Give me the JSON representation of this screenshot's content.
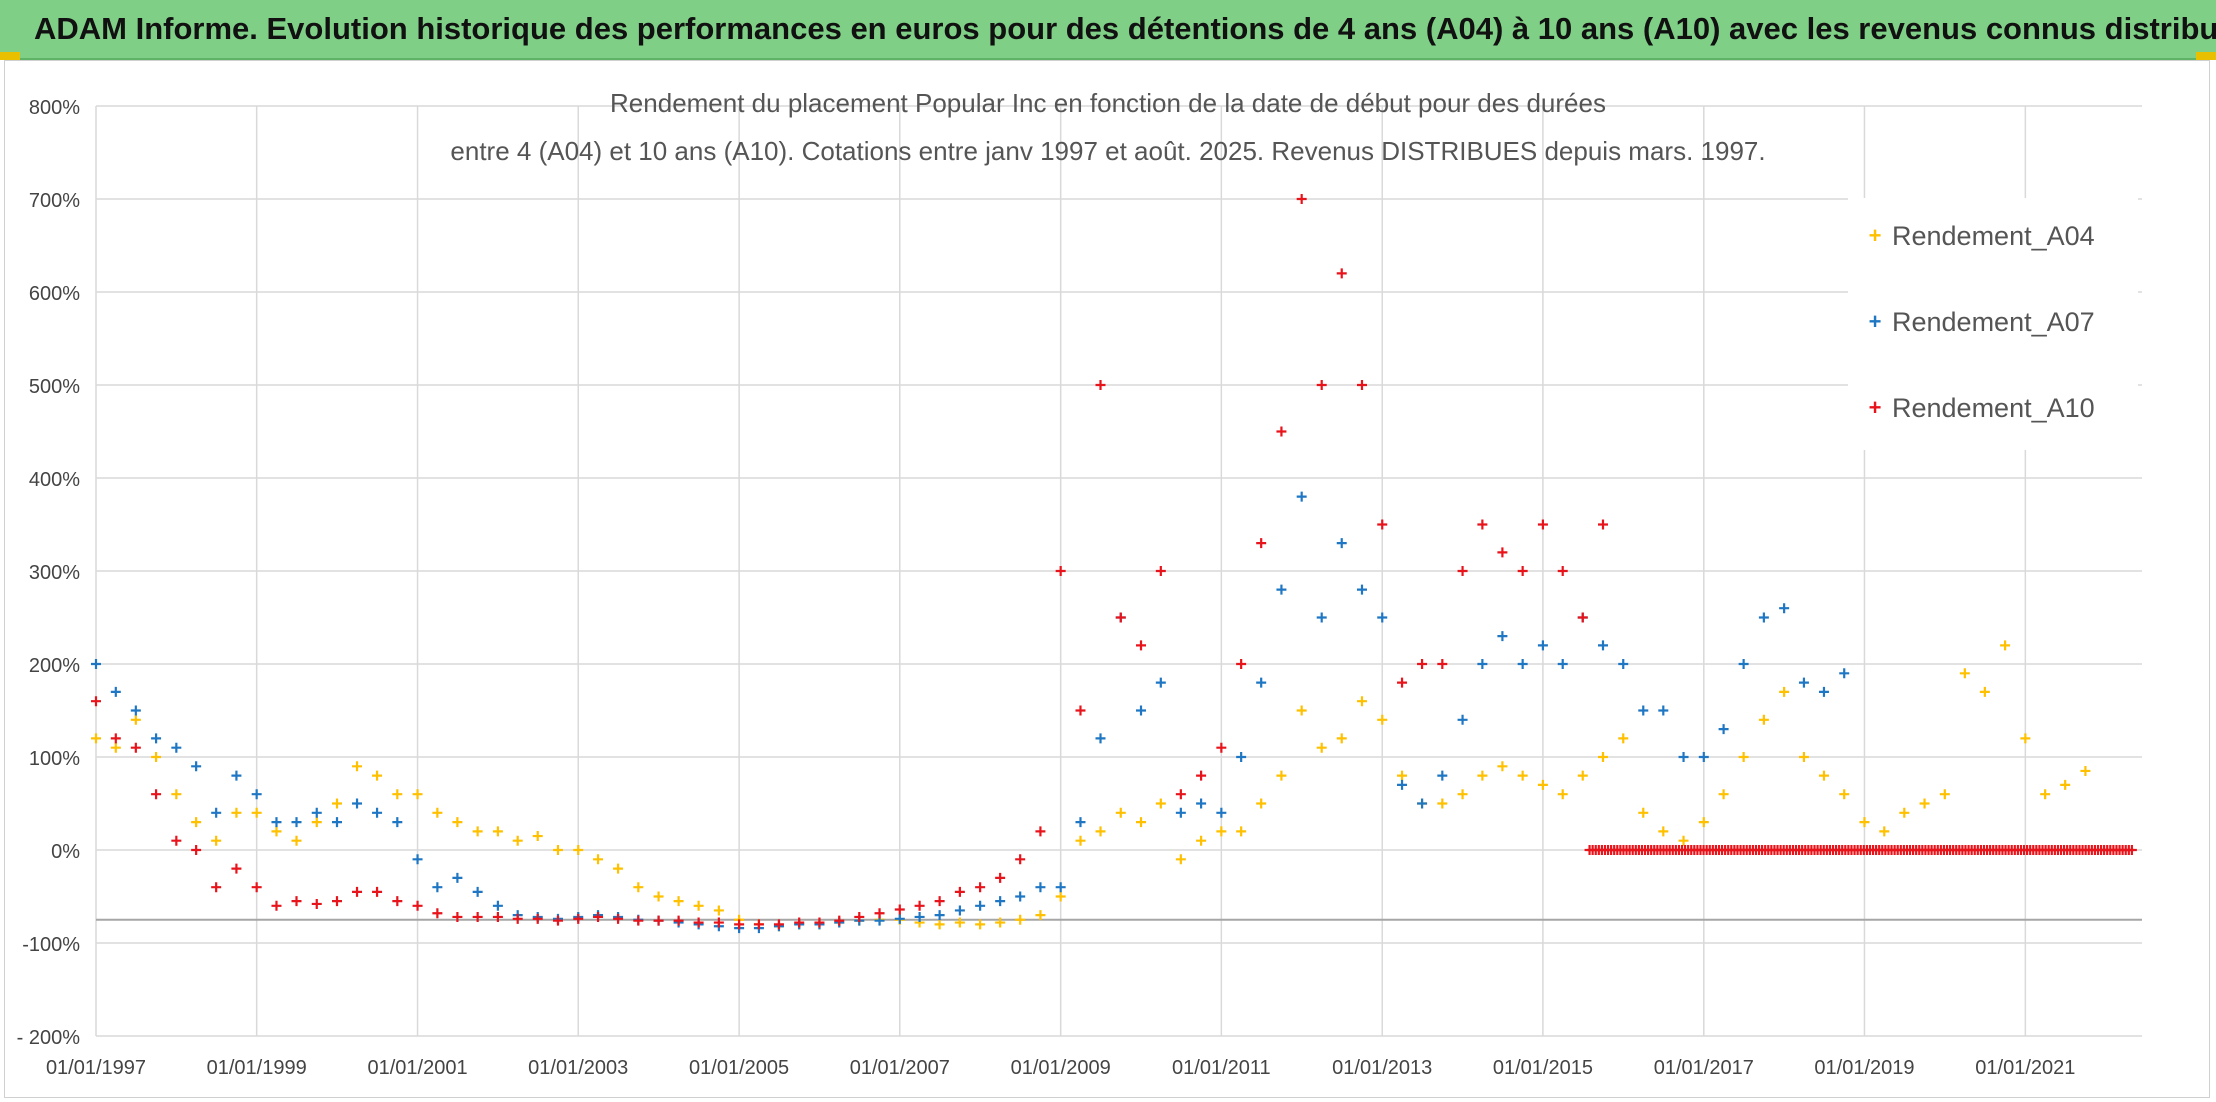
{
  "banner": {
    "title": "ADAM Informe. Evolution historique des performances en euros pour des détentions de 4 ans (A04) à 10 ans (A10) avec les revenus connus distribués"
  },
  "colors": {
    "banner_bg": "#7fcf86",
    "accent": "#e8c000",
    "A04": "#ffc000",
    "A07": "#1f77c4",
    "A10": "#e8141b",
    "grid": "#d9d9d9"
  },
  "chart_data": {
    "type": "scatter",
    "title_line1": "Rendement du placement Popular Inc en fonction de la date de début pour des durées",
    "title_line2": "entre 4 (A04) et 10 ans (A10). Cotations entre janv 1997 et août. 2025. Revenus DISTRIBUES depuis mars. 1997.",
    "marker": "+",
    "xlabel": "",
    "ylabel": "",
    "x_range": [
      "1997-01-01",
      "2022-06-15"
    ],
    "y_range": [
      -200,
      800
    ],
    "y_ticks": [
      -200,
      -100,
      0,
      100,
      200,
      300,
      400,
      500,
      600,
      700,
      800
    ],
    "y_tick_labels": [
      "- 200%",
      "-100%",
      "0%",
      "100%",
      "200%",
      "300%",
      "400%",
      "500%",
      "600%",
      "700%",
      "800%"
    ],
    "x_tick_labels": [
      "01/01/1997",
      "01/01/1999",
      "01/01/2001",
      "01/01/2003",
      "01/01/2005",
      "01/01/2007",
      "01/01/2009",
      "01/01/2011",
      "01/01/2013",
      "01/01/2015",
      "01/01/2017",
      "01/01/2019",
      "01/01/2021"
    ],
    "x_tick_dates": [
      "1997-01-01",
      "1999-01-01",
      "2001-01-01",
      "2003-01-01",
      "2005-01-01",
      "2007-01-01",
      "2009-01-01",
      "2011-01-01",
      "2013-01-01",
      "2015-01-01",
      "2017-01-01",
      "2019-01-01",
      "2021-01-01"
    ],
    "grid": true,
    "legend_position": "top-right",
    "reference_line_y": -75,
    "series": [
      {
        "name": "Rendement_A04",
        "color": "#ffc000",
        "points": [
          [
            "1997-01-01",
            120
          ],
          [
            "1997-04-01",
            110
          ],
          [
            "1997-07-01",
            140
          ],
          [
            "1997-10-01",
            100
          ],
          [
            "1998-01-01",
            60
          ],
          [
            "1998-04-01",
            30
          ],
          [
            "1998-07-01",
            10
          ],
          [
            "1998-10-01",
            40
          ],
          [
            "1999-01-01",
            40
          ],
          [
            "1999-04-01",
            20
          ],
          [
            "1999-07-01",
            10
          ],
          [
            "1999-10-01",
            30
          ],
          [
            "2000-01-01",
            50
          ],
          [
            "2000-04-01",
            90
          ],
          [
            "2000-07-01",
            80
          ],
          [
            "2000-10-01",
            60
          ],
          [
            "2001-01-01",
            60
          ],
          [
            "2001-04-01",
            40
          ],
          [
            "2001-07-01",
            30
          ],
          [
            "2001-10-01",
            20
          ],
          [
            "2002-01-01",
            20
          ],
          [
            "2002-04-01",
            10
          ],
          [
            "2002-07-01",
            15
          ],
          [
            "2002-10-01",
            0
          ],
          [
            "2003-01-01",
            0
          ],
          [
            "2003-04-01",
            -10
          ],
          [
            "2003-07-01",
            -20
          ],
          [
            "2003-10-01",
            -40
          ],
          [
            "2004-01-01",
            -50
          ],
          [
            "2004-04-01",
            -55
          ],
          [
            "2004-07-01",
            -60
          ],
          [
            "2004-10-01",
            -65
          ],
          [
            "2005-01-01",
            -75
          ],
          [
            "2005-04-01",
            -80
          ],
          [
            "2005-07-01",
            -82
          ],
          [
            "2005-10-01",
            -80
          ],
          [
            "2006-01-01",
            -80
          ],
          [
            "2006-04-01",
            -78
          ],
          [
            "2006-07-01",
            -76
          ],
          [
            "2006-10-01",
            -75
          ],
          [
            "2007-01-01",
            -75
          ],
          [
            "2007-04-01",
            -78
          ],
          [
            "2007-07-01",
            -80
          ],
          [
            "2007-10-01",
            -78
          ],
          [
            "2008-01-01",
            -80
          ],
          [
            "2008-04-01",
            -78
          ],
          [
            "2008-07-01",
            -75
          ],
          [
            "2008-10-01",
            -70
          ],
          [
            "2009-01-01",
            -50
          ],
          [
            "2009-04-01",
            10
          ],
          [
            "2009-07-01",
            20
          ],
          [
            "2009-10-01",
            40
          ],
          [
            "2010-01-01",
            30
          ],
          [
            "2010-04-01",
            50
          ],
          [
            "2010-07-01",
            -10
          ],
          [
            "2010-10-01",
            10
          ],
          [
            "2011-01-01",
            20
          ],
          [
            "2011-04-01",
            20
          ],
          [
            "2011-07-01",
            50
          ],
          [
            "2011-10-01",
            80
          ],
          [
            "2012-01-01",
            150
          ],
          [
            "2012-04-01",
            110
          ],
          [
            "2012-07-01",
            120
          ],
          [
            "2012-10-01",
            160
          ],
          [
            "2013-01-01",
            140
          ],
          [
            "2013-04-01",
            80
          ],
          [
            "2013-07-01",
            50
          ],
          [
            "2013-10-01",
            50
          ],
          [
            "2014-01-01",
            60
          ],
          [
            "2014-04-01",
            80
          ],
          [
            "2014-07-01",
            90
          ],
          [
            "2014-10-01",
            80
          ],
          [
            "2015-01-01",
            70
          ],
          [
            "2015-04-01",
            60
          ],
          [
            "2015-07-01",
            80
          ],
          [
            "2015-10-01",
            100
          ],
          [
            "2016-01-01",
            120
          ],
          [
            "2016-04-01",
            40
          ],
          [
            "2016-07-01",
            20
          ],
          [
            "2016-10-01",
            10
          ],
          [
            "2017-01-01",
            30
          ],
          [
            "2017-04-01",
            60
          ],
          [
            "2017-07-01",
            100
          ],
          [
            "2017-10-01",
            140
          ],
          [
            "2018-01-01",
            170
          ],
          [
            "2018-04-01",
            100
          ],
          [
            "2018-07-01",
            80
          ],
          [
            "2018-10-01",
            60
          ],
          [
            "2019-01-01",
            30
          ],
          [
            "2019-04-01",
            20
          ],
          [
            "2019-07-01",
            40
          ],
          [
            "2019-10-01",
            50
          ],
          [
            "2020-01-01",
            60
          ],
          [
            "2020-04-01",
            190
          ],
          [
            "2020-07-01",
            170
          ],
          [
            "2020-10-01",
            220
          ],
          [
            "2021-01-01",
            120
          ],
          [
            "2021-04-01",
            60
          ],
          [
            "2021-07-01",
            70
          ],
          [
            "2021-10-01",
            85
          ]
        ]
      },
      {
        "name": "Rendement_A07",
        "color": "#1f77c4",
        "points": [
          [
            "1997-01-01",
            200
          ],
          [
            "1997-04-01",
            170
          ],
          [
            "1997-07-01",
            150
          ],
          [
            "1997-10-01",
            120
          ],
          [
            "1998-01-01",
            110
          ],
          [
            "1998-04-01",
            90
          ],
          [
            "1998-07-01",
            40
          ],
          [
            "1998-10-01",
            80
          ],
          [
            "1999-01-01",
            60
          ],
          [
            "1999-04-01",
            30
          ],
          [
            "1999-07-01",
            30
          ],
          [
            "1999-10-01",
            40
          ],
          [
            "2000-01-01",
            30
          ],
          [
            "2000-04-01",
            50
          ],
          [
            "2000-07-01",
            40
          ],
          [
            "2000-10-01",
            30
          ],
          [
            "2001-01-01",
            -10
          ],
          [
            "2001-04-01",
            -40
          ],
          [
            "2001-07-01",
            -30
          ],
          [
            "2001-10-01",
            -45
          ],
          [
            "2002-01-01",
            -60
          ],
          [
            "2002-04-01",
            -70
          ],
          [
            "2002-07-01",
            -72
          ],
          [
            "2002-10-01",
            -74
          ],
          [
            "2003-01-01",
            -72
          ],
          [
            "2003-04-01",
            -70
          ],
          [
            "2003-07-01",
            -72
          ],
          [
            "2003-10-01",
            -75
          ],
          [
            "2004-01-01",
            -76
          ],
          [
            "2004-04-01",
            -78
          ],
          [
            "2004-07-01",
            -80
          ],
          [
            "2004-10-01",
            -82
          ],
          [
            "2005-01-01",
            -84
          ],
          [
            "2005-04-01",
            -84
          ],
          [
            "2005-07-01",
            -82
          ],
          [
            "2005-10-01",
            -80
          ],
          [
            "2006-01-01",
            -80
          ],
          [
            "2006-04-01",
            -78
          ],
          [
            "2006-07-01",
            -76
          ],
          [
            "2006-10-01",
            -76
          ],
          [
            "2007-01-01",
            -74
          ],
          [
            "2007-04-01",
            -72
          ],
          [
            "2007-07-01",
            -70
          ],
          [
            "2007-10-01",
            -65
          ],
          [
            "2008-01-01",
            -60
          ],
          [
            "2008-04-01",
            -55
          ],
          [
            "2008-07-01",
            -50
          ],
          [
            "2008-10-01",
            -40
          ],
          [
            "2009-01-01",
            -40
          ],
          [
            "2009-04-01",
            30
          ],
          [
            "2009-07-01",
            120
          ],
          [
            "2009-10-01",
            250
          ],
          [
            "2010-01-01",
            150
          ],
          [
            "2010-04-01",
            180
          ],
          [
            "2010-07-01",
            40
          ],
          [
            "2010-10-01",
            50
          ],
          [
            "2011-01-01",
            40
          ],
          [
            "2011-04-01",
            100
          ],
          [
            "2011-07-01",
            180
          ],
          [
            "2011-10-01",
            280
          ],
          [
            "2012-01-01",
            380
          ],
          [
            "2012-04-01",
            250
          ],
          [
            "2012-07-01",
            330
          ],
          [
            "2012-10-01",
            280
          ],
          [
            "2013-01-01",
            250
          ],
          [
            "2013-04-01",
            70
          ],
          [
            "2013-07-01",
            50
          ],
          [
            "2013-10-01",
            80
          ],
          [
            "2014-01-01",
            140
          ],
          [
            "2014-04-01",
            200
          ],
          [
            "2014-07-01",
            230
          ],
          [
            "2014-10-01",
            200
          ],
          [
            "2015-01-01",
            220
          ],
          [
            "2015-04-01",
            200
          ],
          [
            "2015-07-01",
            250
          ],
          [
            "2015-10-01",
            220
          ],
          [
            "2016-01-01",
            200
          ],
          [
            "2016-04-01",
            150
          ],
          [
            "2016-07-01",
            150
          ],
          [
            "2016-10-01",
            100
          ],
          [
            "2017-01-01",
            100
          ],
          [
            "2017-04-01",
            130
          ],
          [
            "2017-07-01",
            200
          ],
          [
            "2017-10-01",
            250
          ],
          [
            "2018-01-01",
            260
          ],
          [
            "2018-04-01",
            180
          ],
          [
            "2018-07-01",
            170
          ],
          [
            "2018-10-01",
            190
          ]
        ]
      },
      {
        "name": "Rendement_A10",
        "color": "#e8141b",
        "points": [
          [
            "1997-01-01",
            160
          ],
          [
            "1997-04-01",
            120
          ],
          [
            "1997-07-01",
            110
          ],
          [
            "1997-10-01",
            60
          ],
          [
            "1998-01-01",
            10
          ],
          [
            "1998-04-01",
            0
          ],
          [
            "1998-07-01",
            -40
          ],
          [
            "1998-10-01",
            -20
          ],
          [
            "1999-01-01",
            -40
          ],
          [
            "1999-04-01",
            -60
          ],
          [
            "1999-07-01",
            -55
          ],
          [
            "1999-10-01",
            -58
          ],
          [
            "2000-01-01",
            -55
          ],
          [
            "2000-04-01",
            -45
          ],
          [
            "2000-07-01",
            -45
          ],
          [
            "2000-10-01",
            -55
          ],
          [
            "2001-01-01",
            -60
          ],
          [
            "2001-04-01",
            -68
          ],
          [
            "2001-07-01",
            -72
          ],
          [
            "2001-10-01",
            -72
          ],
          [
            "2002-01-01",
            -72
          ],
          [
            "2002-04-01",
            -74
          ],
          [
            "2002-07-01",
            -74
          ],
          [
            "2002-10-01",
            -76
          ],
          [
            "2003-01-01",
            -74
          ],
          [
            "2003-04-01",
            -72
          ],
          [
            "2003-07-01",
            -74
          ],
          [
            "2003-10-01",
            -76
          ],
          [
            "2004-01-01",
            -76
          ],
          [
            "2004-04-01",
            -76
          ],
          [
            "2004-07-01",
            -78
          ],
          [
            "2004-10-01",
            -78
          ],
          [
            "2005-01-01",
            -80
          ],
          [
            "2005-04-01",
            -80
          ],
          [
            "2005-07-01",
            -80
          ],
          [
            "2005-10-01",
            -78
          ],
          [
            "2006-01-01",
            -78
          ],
          [
            "2006-04-01",
            -76
          ],
          [
            "2006-07-01",
            -72
          ],
          [
            "2006-10-01",
            -68
          ],
          [
            "2007-01-01",
            -64
          ],
          [
            "2007-04-01",
            -60
          ],
          [
            "2007-07-01",
            -55
          ],
          [
            "2007-10-01",
            -45
          ],
          [
            "2008-01-01",
            -40
          ],
          [
            "2008-04-01",
            -30
          ],
          [
            "2008-07-01",
            -10
          ],
          [
            "2008-10-01",
            20
          ],
          [
            "2009-01-01",
            300
          ],
          [
            "2009-04-01",
            150
          ],
          [
            "2009-07-01",
            500
          ],
          [
            "2009-10-01",
            250
          ],
          [
            "2010-01-01",
            220
          ],
          [
            "2010-04-01",
            300
          ],
          [
            "2010-07-01",
            60
          ],
          [
            "2010-10-01",
            80
          ],
          [
            "2011-01-01",
            110
          ],
          [
            "2011-04-01",
            200
          ],
          [
            "2011-07-01",
            330
          ],
          [
            "2011-10-01",
            450
          ],
          [
            "2012-01-01",
            700
          ],
          [
            "2012-04-01",
            500
          ],
          [
            "2012-07-01",
            620
          ],
          [
            "2012-10-01",
            500
          ],
          [
            "2013-01-01",
            350
          ],
          [
            "2013-04-01",
            180
          ],
          [
            "2013-07-01",
            200
          ],
          [
            "2013-10-01",
            200
          ],
          [
            "2014-01-01",
            300
          ],
          [
            "2014-04-01",
            350
          ],
          [
            "2014-07-01",
            320
          ],
          [
            "2014-10-01",
            300
          ],
          [
            "2015-01-01",
            350
          ],
          [
            "2015-04-01",
            300
          ],
          [
            "2015-07-01",
            250
          ],
          [
            "2015-10-01",
            350
          ]
        ],
        "flat_segment": {
          "x_start": "2015-08-01",
          "x_end": "2022-05-01",
          "y": 0
        }
      }
    ]
  }
}
